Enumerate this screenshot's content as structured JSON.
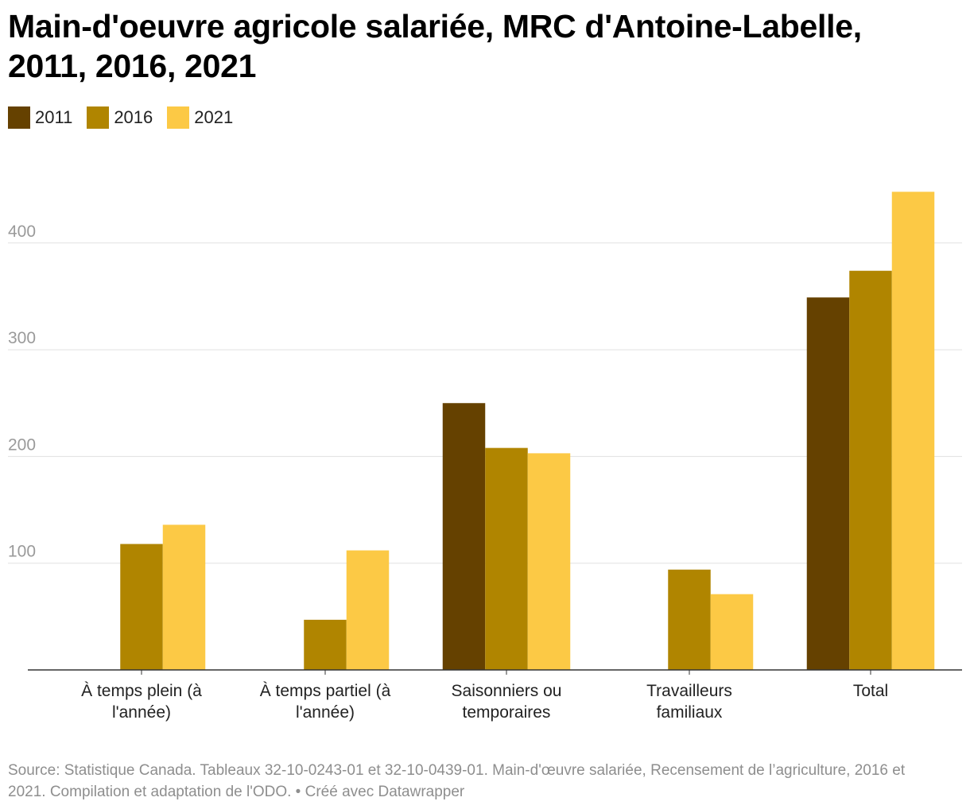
{
  "title": "Main-d'oeuvre agricole salariée, MRC d'Antoine-Labelle, 2011, 2016, 2021",
  "footer": {
    "text": "Source: Statistique Canada. Tableaux 32-10-0243-01 et 32-10-0439-01. Main-d'œuvre salariée, Recensement de l’agriculture, 2016 et 2021. Compilation et adaptation de l'ODO. • Créé avec Datawrapper"
  },
  "chart_data": {
    "type": "bar",
    "title": "Main-d'oeuvre agricole salariée, MRC d'Antoine-Labelle, 2011, 2016, 2021",
    "xlabel": "",
    "ylabel": "",
    "categories": [
      [
        "À temps plein (à",
        "l'année)"
      ],
      [
        "À temps partiel (à",
        "l'année)"
      ],
      [
        "Saisonniers ou",
        "temporaires"
      ],
      [
        "Travailleurs",
        "familiaux"
      ],
      [
        "Total"
      ]
    ],
    "series": [
      {
        "name": "2011",
        "color": "#654100",
        "values": [
          null,
          null,
          250,
          null,
          349
        ]
      },
      {
        "name": "2016",
        "color": "#b08500",
        "values": [
          118,
          47,
          208,
          94,
          374
        ]
      },
      {
        "name": "2021",
        "color": "#fcc945",
        "values": [
          136,
          112,
          203,
          71,
          448
        ]
      }
    ],
    "yticks": [
      100,
      200,
      300,
      400
    ],
    "ylim": [
      0,
      460
    ],
    "grid": true,
    "legend": "top-left"
  }
}
